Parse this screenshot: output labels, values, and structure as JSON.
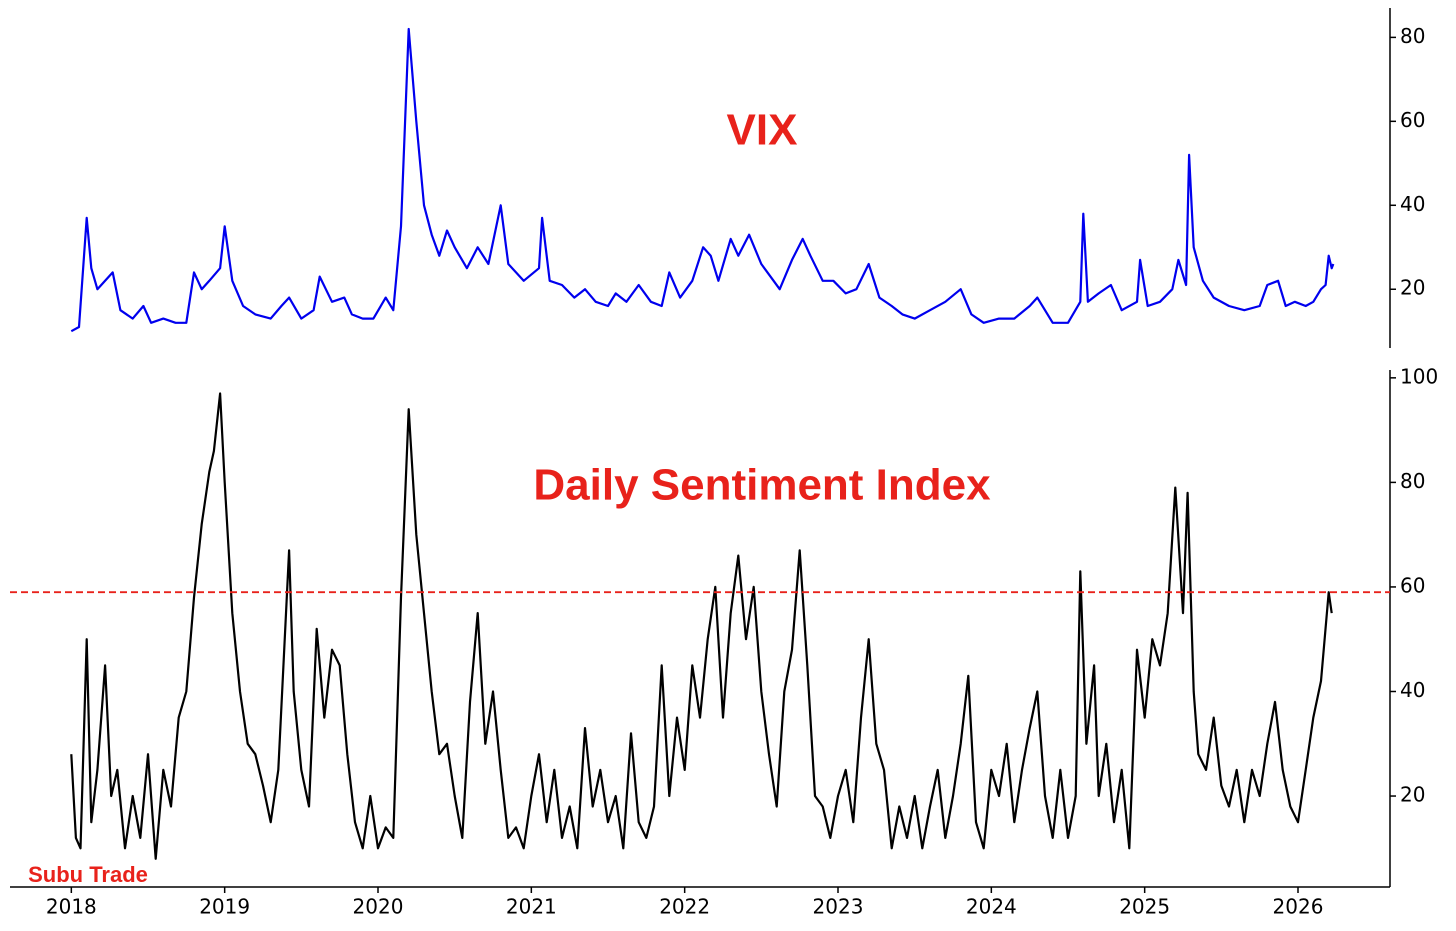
{
  "chart_data": [
    {
      "type": "line",
      "annotations": [
        "VIX"
      ],
      "xlim": [
        2017.6,
        2026.6
      ],
      "ylim": [
        6,
        87
      ],
      "yticks": [
        20,
        40,
        60,
        80
      ],
      "yaxis": "right",
      "series": [
        {
          "name": "VIX",
          "color": "#0000ee",
          "x": [
            2018.0,
            2018.05,
            2018.1,
            2018.13,
            2018.17,
            2018.22,
            2018.27,
            2018.32,
            2018.4,
            2018.47,
            2018.52,
            2018.6,
            2018.68,
            2018.75,
            2018.8,
            2018.85,
            2018.9,
            2018.97,
            2019.0,
            2019.05,
            2019.12,
            2019.2,
            2019.3,
            2019.37,
            2019.42,
            2019.5,
            2019.58,
            2019.62,
            2019.7,
            2019.78,
            2019.83,
            2019.9,
            2019.97,
            2020.05,
            2020.1,
            2020.15,
            2020.2,
            2020.25,
            2020.3,
            2020.35,
            2020.4,
            2020.45,
            2020.5,
            2020.58,
            2020.65,
            2020.72,
            2020.8,
            2020.85,
            2020.95,
            2021.05,
            2021.07,
            2021.12,
            2021.2,
            2021.28,
            2021.35,
            2021.42,
            2021.5,
            2021.55,
            2021.62,
            2021.7,
            2021.78,
            2021.85,
            2021.9,
            2021.97,
            2022.05,
            2022.12,
            2022.17,
            2022.22,
            2022.3,
            2022.35,
            2022.42,
            2022.5,
            2022.58,
            2022.62,
            2022.7,
            2022.77,
            2022.82,
            2022.9,
            2022.97,
            2023.05,
            2023.12,
            2023.2,
            2023.27,
            2023.35,
            2023.42,
            2023.5,
            2023.6,
            2023.7,
            2023.8,
            2023.87,
            2023.95,
            2024.05,
            2024.15,
            2024.25,
            2024.3,
            2024.4,
            2024.5,
            2024.58,
            2024.6,
            2024.63,
            2024.7,
            2024.78,
            2024.85,
            2024.95,
            2024.97,
            2025.02,
            2025.1,
            2025.18,
            2025.22,
            2025.27,
            2025.29,
            2025.32,
            2025.38,
            2025.45,
            2025.55,
            2025.65,
            2025.75,
            2025.8,
            2025.87,
            2025.92,
            2025.98,
            2026.05,
            2026.1,
            2026.15,
            2026.18,
            2026.2,
            2026.22,
            2026.23
          ],
          "values": [
            10,
            11,
            37,
            25,
            20,
            22,
            24,
            15,
            13,
            16,
            12,
            13,
            12,
            12,
            24,
            20,
            22,
            25,
            35,
            22,
            16,
            14,
            13,
            16,
            18,
            13,
            15,
            23,
            17,
            18,
            14,
            13,
            13,
            18,
            15,
            35,
            82,
            60,
            40,
            33,
            28,
            34,
            30,
            25,
            30,
            26,
            40,
            26,
            22,
            25,
            37,
            22,
            21,
            18,
            20,
            17,
            16,
            19,
            17,
            21,
            17,
            16,
            24,
            18,
            22,
            30,
            28,
            22,
            32,
            28,
            33,
            26,
            22,
            20,
            27,
            32,
            28,
            22,
            22,
            19,
            20,
            26,
            18,
            16,
            14,
            13,
            15,
            17,
            20,
            14,
            12,
            13,
            13,
            16,
            18,
            12,
            12,
            17,
            38,
            17,
            19,
            21,
            15,
            17,
            27,
            16,
            17,
            20,
            27,
            21,
            52,
            30,
            22,
            18,
            16,
            15,
            16,
            21,
            22,
            16,
            17,
            16,
            17,
            20,
            21,
            28,
            25,
            26
          ]
        }
      ]
    },
    {
      "type": "line",
      "annotations": [
        "Daily Sentiment Index",
        "Subu Trade"
      ],
      "xlim": [
        2017.6,
        2026.6
      ],
      "ylim": [
        2.6,
        101.5
      ],
      "yticks": [
        20,
        40,
        60,
        80,
        100
      ],
      "xticks": [
        2018,
        2019,
        2020,
        2021,
        2022,
        2023,
        2024,
        2025,
        2026
      ],
      "yaxis": "right",
      "hline": {
        "value": 59,
        "color": "#e8221b",
        "style": "dashed"
      },
      "series": [
        {
          "name": "Daily Sentiment Index",
          "color": "#000000",
          "x": [
            2018.0,
            2018.03,
            2018.06,
            2018.1,
            2018.13,
            2018.17,
            2018.22,
            2018.26,
            2018.3,
            2018.35,
            2018.4,
            2018.45,
            2018.5,
            2018.55,
            2018.6,
            2018.65,
            2018.7,
            2018.75,
            2018.8,
            2018.85,
            2018.9,
            2018.93,
            2018.97,
            2019.0,
            2019.05,
            2019.1,
            2019.15,
            2019.2,
            2019.25,
            2019.3,
            2019.35,
            2019.42,
            2019.45,
            2019.5,
            2019.55,
            2019.6,
            2019.65,
            2019.7,
            2019.75,
            2019.8,
            2019.85,
            2019.9,
            2019.95,
            2020.0,
            2020.05,
            2020.1,
            2020.15,
            2020.2,
            2020.25,
            2020.3,
            2020.35,
            2020.4,
            2020.45,
            2020.5,
            2020.55,
            2020.6,
            2020.65,
            2020.7,
            2020.75,
            2020.8,
            2020.85,
            2020.9,
            2020.95,
            2021.0,
            2021.05,
            2021.1,
            2021.15,
            2021.2,
            2021.25,
            2021.3,
            2021.35,
            2021.4,
            2021.45,
            2021.5,
            2021.55,
            2021.6,
            2021.65,
            2021.7,
            2021.75,
            2021.8,
            2021.85,
            2021.9,
            2021.95,
            2022.0,
            2022.05,
            2022.1,
            2022.15,
            2022.2,
            2022.25,
            2022.3,
            2022.35,
            2022.4,
            2022.45,
            2022.5,
            2022.55,
            2022.6,
            2022.65,
            2022.7,
            2022.75,
            2022.8,
            2022.85,
            2022.9,
            2022.95,
            2023.0,
            2023.05,
            2023.1,
            2023.15,
            2023.2,
            2023.25,
            2023.3,
            2023.35,
            2023.4,
            2023.45,
            2023.5,
            2023.55,
            2023.6,
            2023.65,
            2023.7,
            2023.75,
            2023.8,
            2023.85,
            2023.9,
            2023.95,
            2024.0,
            2024.05,
            2024.1,
            2024.15,
            2024.2,
            2024.25,
            2024.3,
            2024.35,
            2024.4,
            2024.45,
            2024.5,
            2024.55,
            2024.58,
            2024.62,
            2024.67,
            2024.7,
            2024.75,
            2024.8,
            2024.85,
            2024.9,
            2024.95,
            2025.0,
            2025.05,
            2025.1,
            2025.15,
            2025.2,
            2025.25,
            2025.28,
            2025.32,
            2025.35,
            2025.4,
            2025.45,
            2025.5,
            2025.55,
            2025.6,
            2025.65,
            2025.7,
            2025.75,
            2025.8,
            2025.85,
            2025.9,
            2025.95,
            2026.0,
            2026.05,
            2026.1,
            2026.15,
            2026.2,
            2026.22
          ],
          "values": [
            28,
            12,
            10,
            50,
            15,
            25,
            45,
            20,
            25,
            10,
            20,
            12,
            28,
            8,
            25,
            18,
            35,
            40,
            58,
            72,
            82,
            86,
            97,
            80,
            55,
            40,
            30,
            28,
            22,
            15,
            25,
            67,
            40,
            25,
            18,
            52,
            35,
            48,
            45,
            28,
            15,
            10,
            20,
            10,
            14,
            12,
            58,
            94,
            70,
            55,
            40,
            28,
            30,
            20,
            12,
            38,
            55,
            30,
            40,
            25,
            12,
            14,
            10,
            20,
            28,
            15,
            25,
            12,
            18,
            10,
            33,
            18,
            25,
            15,
            20,
            10,
            32,
            15,
            12,
            18,
            45,
            20,
            35,
            25,
            45,
            35,
            50,
            60,
            35,
            55,
            66,
            50,
            60,
            40,
            28,
            18,
            40,
            48,
            67,
            45,
            20,
            18,
            12,
            20,
            25,
            15,
            35,
            50,
            30,
            25,
            10,
            18,
            12,
            20,
            10,
            18,
            25,
            12,
            20,
            30,
            43,
            15,
            10,
            25,
            20,
            30,
            15,
            25,
            33,
            40,
            20,
            12,
            25,
            12,
            20,
            63,
            30,
            45,
            20,
            30,
            15,
            25,
            10,
            48,
            35,
            50,
            45,
            55,
            79,
            55,
            78,
            40,
            28,
            25,
            35,
            22,
            18,
            25,
            15,
            25,
            20,
            30,
            38,
            25,
            18,
            15,
            25,
            35,
            42,
            59,
            55
          ]
        }
      ]
    }
  ]
}
